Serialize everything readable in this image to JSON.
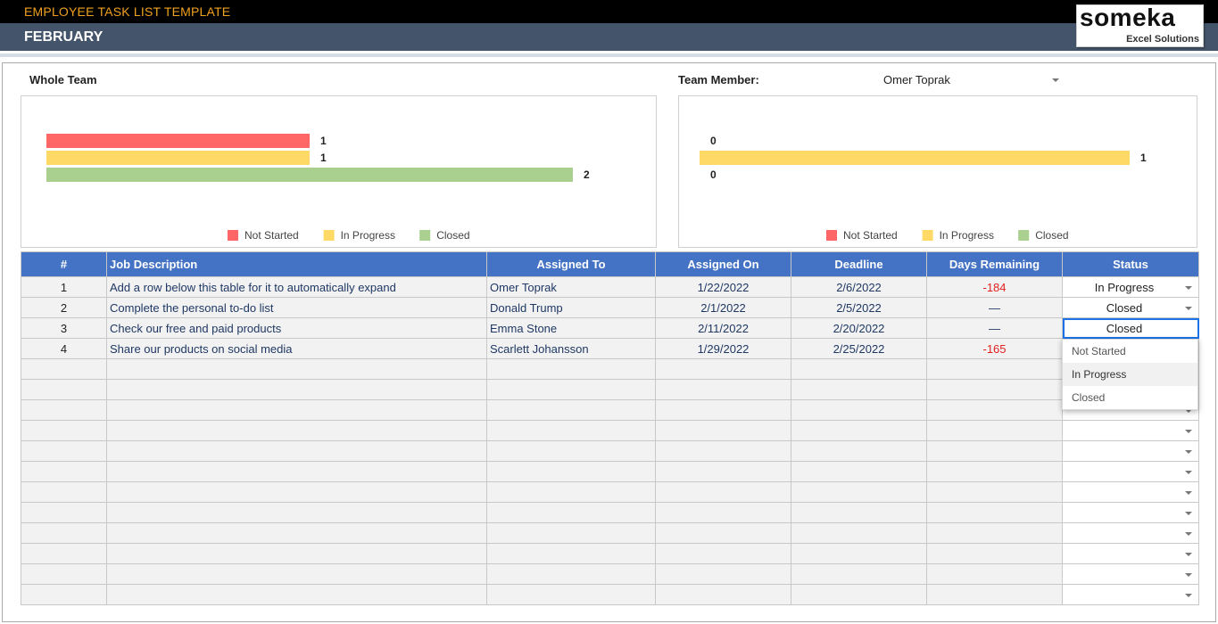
{
  "header": {
    "app_title": "EMPLOYEE TASK LIST TEMPLATE",
    "month": "FEBRUARY",
    "logo_brand": "someka",
    "logo_sub": "Excel Solutions"
  },
  "filters": {
    "whole_team_label": "Whole Team",
    "team_member_label": "Team Member:",
    "team_member_value": "Omer Toprak"
  },
  "colors": {
    "not_started": "#ff6666",
    "in_progress": "#ffd966",
    "closed": "#a9d08e",
    "table_header": "#4472c4",
    "banner": "#44546a"
  },
  "chart_data": [
    {
      "type": "bar",
      "orientation": "horizontal",
      "title": "",
      "categories": [
        "Not Started",
        "In Progress",
        "Closed"
      ],
      "values": [
        1,
        1,
        2
      ],
      "legend": [
        "Not Started",
        "In Progress",
        "Closed"
      ],
      "legend_position": "bottom",
      "grid": false
    },
    {
      "type": "bar",
      "orientation": "horizontal",
      "title": "",
      "categories": [
        "Not Started",
        "In Progress",
        "Closed"
      ],
      "values": [
        0,
        1,
        0
      ],
      "legend": [
        "Not Started",
        "In Progress",
        "Closed"
      ],
      "legend_position": "bottom",
      "grid": false
    }
  ],
  "table": {
    "headers": [
      "#",
      "Job Description",
      "Assigned To",
      "Assigned On",
      "Deadline",
      "Days Remaining",
      "Status"
    ],
    "rows": [
      {
        "num": "1",
        "desc": "Add a row below this table for it to automatically expand",
        "assigned_to": "Omer Toprak",
        "assigned_on": "1/22/2022",
        "deadline": "2/6/2022",
        "days": "-184",
        "status": "In Progress"
      },
      {
        "num": "2",
        "desc": "Complete the personal to-do list",
        "assigned_to": "Donald Trump",
        "assigned_on": "2/1/2022",
        "deadline": "2/5/2022",
        "days": "—",
        "status": "Closed"
      },
      {
        "num": "3",
        "desc": "Check our free and paid products",
        "assigned_to": "Emma Stone",
        "assigned_on": "2/11/2022",
        "deadline": "2/20/2022",
        "days": "—",
        "status": "Closed"
      },
      {
        "num": "4",
        "desc": "Share our products on social media",
        "assigned_to": "Scarlett Johansson",
        "assigned_on": "1/29/2022",
        "deadline": "2/25/2022",
        "days": "-165",
        "status": ""
      }
    ],
    "empty_rows": 12
  },
  "status_dropdown": {
    "options": [
      "Not Started",
      "In Progress",
      "Closed"
    ],
    "highlighted": "In Progress"
  }
}
